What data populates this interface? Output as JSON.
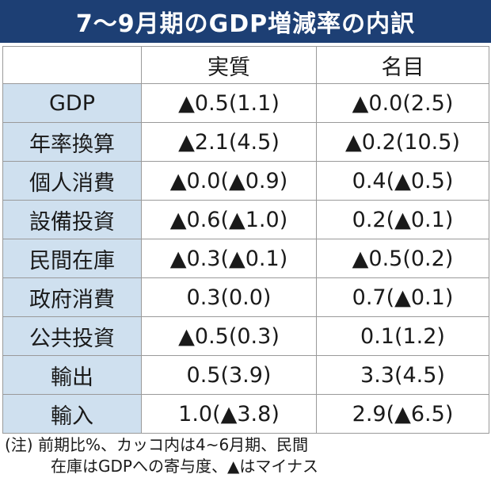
{
  "title": "7〜9月期のGDP増減率の内訳",
  "columns": [
    "実質",
    "名目"
  ],
  "rows": [
    {
      "label": "GDP",
      "real": "▲0.5(1.1)",
      "nominal": "▲0.0(2.5)"
    },
    {
      "label": "年率換算",
      "real": "▲2.1(4.5)",
      "nominal": "▲0.2(10.5)"
    },
    {
      "label": "個人消費",
      "real": "▲0.0(▲0.9)",
      "nominal": "0.4(▲0.5)"
    },
    {
      "label": "設備投資",
      "real": "▲0.6(▲1.0)",
      "nominal": "0.2(▲0.1)"
    },
    {
      "label": "民間在庫",
      "real": "▲0.3(▲0.1)",
      "nominal": "▲0.5(0.2)"
    },
    {
      "label": "政府消費",
      "real": "0.3(0.0)",
      "nominal": "0.7(▲0.1)"
    },
    {
      "label": "公共投資",
      "real": "▲0.5(0.3)",
      "nominal": "0.1(1.2)"
    },
    {
      "label": "輸出",
      "real": "0.5(3.9)",
      "nominal": "3.3(4.5)"
    },
    {
      "label": "輸入",
      "real": "1.0(▲3.8)",
      "nominal": "2.9(▲6.5)"
    }
  ],
  "note": {
    "line1": "(注) 前期比%、カッコ内は4~6月期、民間",
    "line2": "在庫はGDPへの寄与度、▲はマイナス"
  },
  "colors": {
    "title_bg": "#1d3f74",
    "row_header_bg": "#cfe0ef"
  }
}
